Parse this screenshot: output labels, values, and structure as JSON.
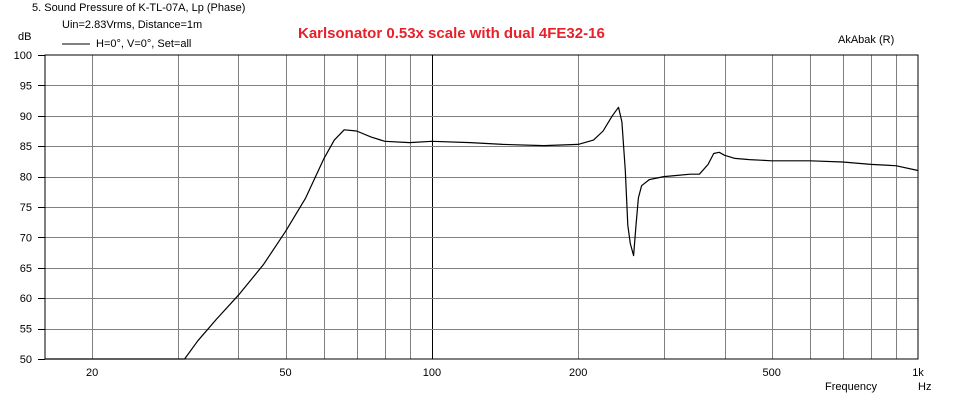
{
  "window_title": "5. Sound Pressure of K-TL-07A, Lp (Phase)",
  "measurement_info": "Uin=2.83Vrms, Distance=1m",
  "legend_label": "H=0°, V=0°, Set=all",
  "overlay_title": "Karlsonator 0.53x scale with dual 4FE32-16",
  "brand": "AkAbak (R)",
  "colors": {
    "overlay_title": "#e8202a",
    "curve": "#000000",
    "grid": "#808080"
  },
  "chart_data": {
    "type": "line",
    "title": "Karlsonator 0.53x scale with dual 4FE32-16",
    "xlabel": "Frequency",
    "xunit": "Hz",
    "ylabel": "dB",
    "xscale": "log",
    "xlim": [
      16,
      1000
    ],
    "ylim": [
      50,
      100
    ],
    "grid": true,
    "legend_position": "top-left",
    "x_ticks": [
      {
        "value": 20,
        "label": "20"
      },
      {
        "value": 50,
        "label": "50"
      },
      {
        "value": 100,
        "label": "100"
      },
      {
        "value": 200,
        "label": "200"
      },
      {
        "value": 500,
        "label": "500"
      },
      {
        "value": 1000,
        "label": "1k"
      }
    ],
    "y_ticks": [
      50,
      55,
      60,
      65,
      70,
      75,
      80,
      85,
      90,
      95,
      100
    ],
    "series": [
      {
        "name": "H=0°, V=0°, Set=all",
        "x": [
          16,
          20,
          25,
          30,
          31,
          33,
          36,
          40,
          45,
          50,
          55,
          60,
          63,
          66,
          70,
          75,
          80,
          90,
          100,
          120,
          140,
          170,
          200,
          215,
          225,
          235,
          242,
          246,
          250,
          253,
          256,
          260,
          263,
          266,
          270,
          280,
          300,
          320,
          340,
          355,
          370,
          380,
          390,
          400,
          420,
          450,
          500,
          600,
          700,
          800,
          900,
          1000
        ],
        "y": [
          50,
          50,
          50,
          50,
          50,
          53,
          56.5,
          60.5,
          65.5,
          71,
          76.5,
          83,
          86,
          87.7,
          87.5,
          86.5,
          85.8,
          85.6,
          85.8,
          85.6,
          85.3,
          85.1,
          85.3,
          86,
          87.5,
          90,
          91.4,
          89,
          81,
          72,
          69,
          67,
          72,
          76.5,
          78.5,
          79.5,
          80,
          80.2,
          80.4,
          80.4,
          82,
          83.8,
          84,
          83.5,
          83,
          82.8,
          82.6,
          82.6,
          82.4,
          82,
          81.8,
          81
        ]
      }
    ]
  }
}
